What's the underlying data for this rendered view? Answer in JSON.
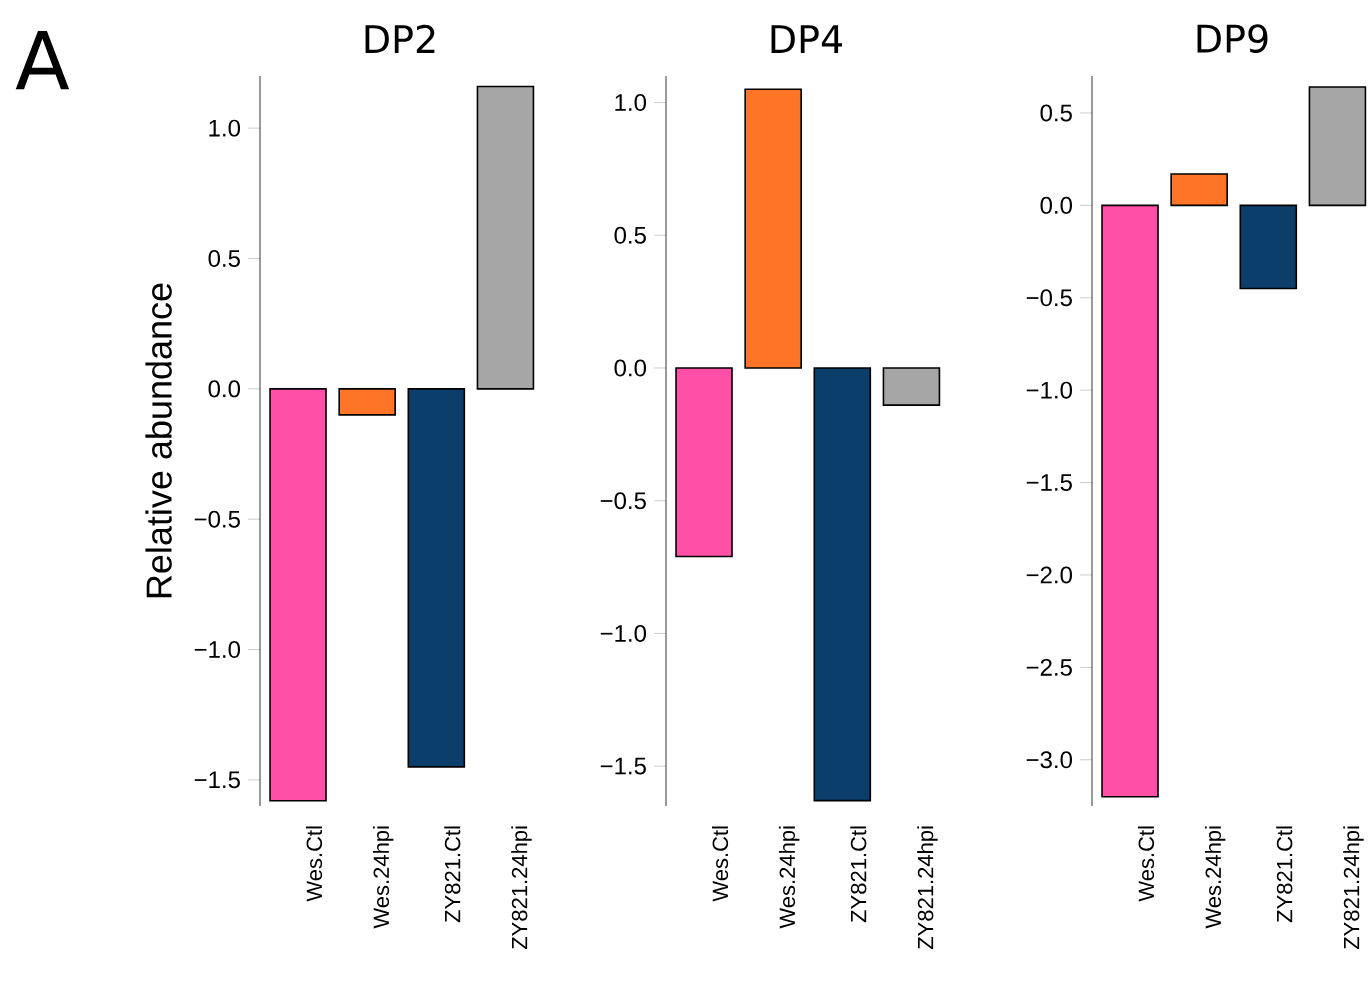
{
  "chart_data": [
    {
      "type": "bar",
      "title": "DP2",
      "ylabel": "Relative abundance",
      "annotations": [
        "A"
      ],
      "categories": [
        "Wes.Ctl",
        "Wes.24hpi",
        "ZY821.Ctl",
        "ZY821.24hpi"
      ],
      "values": [
        -1.58,
        -0.1,
        -1.45,
        1.16
      ],
      "colors": [
        "#ff4fa6",
        "#ff7528",
        "#0b3e6b",
        "#a6a6a6"
      ],
      "ylim": [
        -1.6,
        1.2
      ],
      "yticks": [
        {
          "value": -1.5,
          "label": "−1.5"
        },
        {
          "value": -1,
          "label": "−1.0"
        },
        {
          "value": -0.5,
          "label": "−0.5"
        },
        {
          "value": 0,
          "label": "0.0"
        },
        {
          "value": 0.5,
          "label": "0.5"
        },
        {
          "value": 1,
          "label": "1.0"
        }
      ]
    },
    {
      "type": "bar",
      "title": "DP4",
      "categories": [
        "Wes.Ctl",
        "Wes.24hpi",
        "ZY821.Ctl",
        "ZY821.24hpi"
      ],
      "values": [
        -0.71,
        1.05,
        -1.63,
        -0.14
      ],
      "colors": [
        "#ff4fa6",
        "#ff7528",
        "#0b3e6b",
        "#a6a6a6"
      ],
      "ylim": [
        -1.65,
        1.1
      ],
      "yticks": [
        {
          "value": -1.5,
          "label": "−1.5"
        },
        {
          "value": -1,
          "label": "−1.0"
        },
        {
          "value": -0.5,
          "label": "−0.5"
        },
        {
          "value": 0,
          "label": "0.0"
        },
        {
          "value": 0.5,
          "label": "0.5"
        },
        {
          "value": 1,
          "label": "1.0"
        }
      ]
    },
    {
      "type": "bar",
      "title": "DP9",
      "categories": [
        "Wes.Ctl",
        "Wes.24hpi",
        "ZY821.Ctl",
        "ZY821.24hpi"
      ],
      "values": [
        -3.2,
        0.17,
        -0.45,
        0.64
      ],
      "colors": [
        "#ff4fa6",
        "#ff7528",
        "#0b3e6b",
        "#a6a6a6"
      ],
      "ylim": [
        -3.25,
        0.7
      ],
      "yticks": [
        {
          "value": -3,
          "label": "−3.0"
        },
        {
          "value": -2.5,
          "label": "−2.5"
        },
        {
          "value": -2,
          "label": "−2.0"
        },
        {
          "value": -1.5,
          "label": "−1.5"
        },
        {
          "value": -1,
          "label": "−1.0"
        },
        {
          "value": -0.5,
          "label": "−0.5"
        },
        {
          "value": 0,
          "label": "0.0"
        },
        {
          "value": 0.5,
          "label": "0.5"
        }
      ]
    }
  ]
}
